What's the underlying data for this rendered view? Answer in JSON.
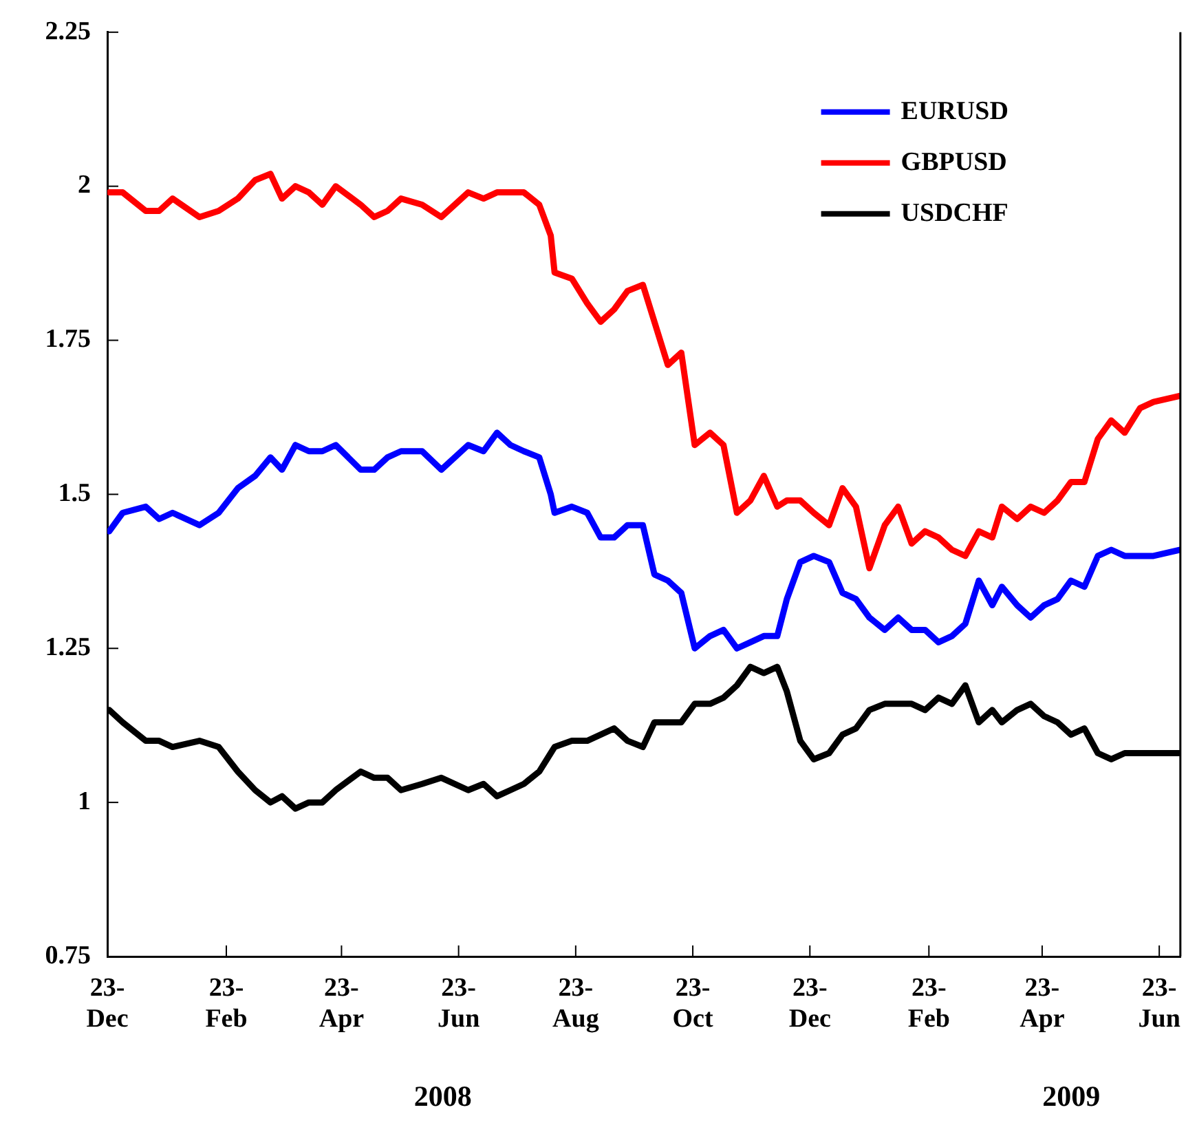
{
  "chart_data": {
    "type": "line",
    "legend": "top right",
    "grid": false,
    "marker": "none",
    "line_style": "solid",
    "x": [
      "2007-12-24",
      "2007-12-31",
      "2008-01-12",
      "2008-01-19",
      "2008-01-26",
      "2008-02-09",
      "2008-02-19",
      "2008-02-29",
      "2008-03-09",
      "2008-03-17",
      "2008-03-23",
      "2008-03-30",
      "2008-04-06",
      "2008-04-13",
      "2008-04-20",
      "2008-05-03",
      "2008-05-10",
      "2008-05-17",
      "2008-05-24",
      "2008-06-04",
      "2008-06-14",
      "2008-06-28",
      "2008-07-06",
      "2008-07-13",
      "2008-07-20",
      "2008-07-27",
      "2008-08-04",
      "2008-08-10",
      "2008-08-12",
      "2008-08-21",
      "2008-08-29",
      "2008-09-05",
      "2008-09-12",
      "2008-09-19",
      "2008-09-27",
      "2008-10-03",
      "2008-10-10",
      "2008-10-17",
      "2008-10-24",
      "2008-11-01",
      "2008-11-08",
      "2008-11-15",
      "2008-11-22",
      "2008-11-29",
      "2008-12-06",
      "2008-12-11",
      "2008-12-18",
      "2008-12-25",
      "2009-01-02",
      "2009-01-09",
      "2009-01-16",
      "2009-01-23",
      "2009-01-31",
      "2009-02-07",
      "2009-02-14",
      "2009-02-21",
      "2009-02-28",
      "2009-03-07",
      "2009-03-14",
      "2009-03-21",
      "2009-03-28",
      "2009-04-02",
      "2009-04-10",
      "2009-04-17",
      "2009-04-24",
      "2009-05-01",
      "2009-05-08",
      "2009-05-15",
      "2009-05-22",
      "2009-05-29",
      "2009-06-05",
      "2009-06-13",
      "2009-06-20",
      "2009-07-04"
    ],
    "series": [
      {
        "name": "EURUSD",
        "color": "#0000ff",
        "values": [
          1.44,
          1.47,
          1.48,
          1.46,
          1.47,
          1.45,
          1.47,
          1.51,
          1.53,
          1.56,
          1.54,
          1.58,
          1.57,
          1.57,
          1.58,
          1.54,
          1.54,
          1.56,
          1.57,
          1.57,
          1.54,
          1.58,
          1.57,
          1.6,
          1.58,
          1.57,
          1.56,
          1.5,
          1.47,
          1.48,
          1.47,
          1.43,
          1.43,
          1.45,
          1.45,
          1.37,
          1.36,
          1.34,
          1.25,
          1.27,
          1.28,
          1.25,
          1.26,
          1.27,
          1.27,
          1.33,
          1.39,
          1.4,
          1.39,
          1.34,
          1.33,
          1.3,
          1.28,
          1.3,
          1.28,
          1.28,
          1.26,
          1.27,
          1.29,
          1.36,
          1.32,
          1.35,
          1.32,
          1.3,
          1.32,
          1.33,
          1.36,
          1.35,
          1.4,
          1.41,
          1.4,
          1.4,
          1.4,
          1.41
        ]
      },
      {
        "name": "GBPUSD",
        "color": "#ff0000",
        "values": [
          1.99,
          1.99,
          1.96,
          1.96,
          1.98,
          1.95,
          1.96,
          1.98,
          2.01,
          2.02,
          1.98,
          2,
          1.99,
          1.97,
          2,
          1.97,
          1.95,
          1.96,
          1.98,
          1.97,
          1.95,
          1.99,
          1.98,
          1.99,
          1.99,
          1.99,
          1.97,
          1.92,
          1.86,
          1.85,
          1.81,
          1.78,
          1.8,
          1.83,
          1.84,
          1.78,
          1.71,
          1.73,
          1.58,
          1.6,
          1.58,
          1.47,
          1.49,
          1.53,
          1.48,
          1.49,
          1.49,
          1.47,
          1.45,
          1.51,
          1.48,
          1.38,
          1.45,
          1.48,
          1.42,
          1.44,
          1.43,
          1.41,
          1.4,
          1.44,
          1.43,
          1.48,
          1.46,
          1.48,
          1.47,
          1.49,
          1.52,
          1.52,
          1.59,
          1.62,
          1.6,
          1.64,
          1.65,
          1.66
        ]
      },
      {
        "name": "USDCHF",
        "color": "#000000",
        "values": [
          1.15,
          1.13,
          1.1,
          1.1,
          1.09,
          1.1,
          1.09,
          1.05,
          1.02,
          1,
          1.01,
          0.99,
          1,
          1,
          1.02,
          1.05,
          1.04,
          1.04,
          1.02,
          1.03,
          1.04,
          1.02,
          1.03,
          1.01,
          1.02,
          1.03,
          1.05,
          1.08,
          1.09,
          1.1,
          1.1,
          1.11,
          1.12,
          1.1,
          1.09,
          1.13,
          1.13,
          1.13,
          1.16,
          1.16,
          1.17,
          1.19,
          1.22,
          1.21,
          1.22,
          1.18,
          1.1,
          1.07,
          1.08,
          1.11,
          1.12,
          1.15,
          1.16,
          1.16,
          1.16,
          1.15,
          1.17,
          1.16,
          1.19,
          1.13,
          1.15,
          1.13,
          1.15,
          1.16,
          1.14,
          1.13,
          1.11,
          1.12,
          1.08,
          1.07,
          1.08,
          1.08,
          1.08,
          1.08
        ]
      }
    ],
    "xlim": [
      "2007-12-23",
      "2009-07-04"
    ],
    "xticks": [
      {
        "value": "2007-12-23",
        "label": "23-\nDec"
      },
      {
        "value": "2008-02-23",
        "label": "23-\nFeb"
      },
      {
        "value": "2008-04-23",
        "label": "23-\nApr"
      },
      {
        "value": "2008-06-23",
        "label": "23-\nJun"
      },
      {
        "value": "2008-08-23",
        "label": "23-\nAug"
      },
      {
        "value": "2008-10-23",
        "label": "23-\nOct"
      },
      {
        "value": "2008-12-23",
        "label": "23-\nDec"
      },
      {
        "value": "2009-02-23",
        "label": "23-\nFeb"
      },
      {
        "value": "2009-04-23",
        "label": "23-\nApr"
      },
      {
        "value": "2009-06-23",
        "label": "23-\nJun"
      }
    ],
    "ylim": [
      0.75,
      2.25
    ],
    "yticks": [
      0.75,
      1,
      1.25,
      1.5,
      1.75,
      2,
      2.25
    ],
    "annotations": [
      "2008",
      "2009"
    ]
  }
}
